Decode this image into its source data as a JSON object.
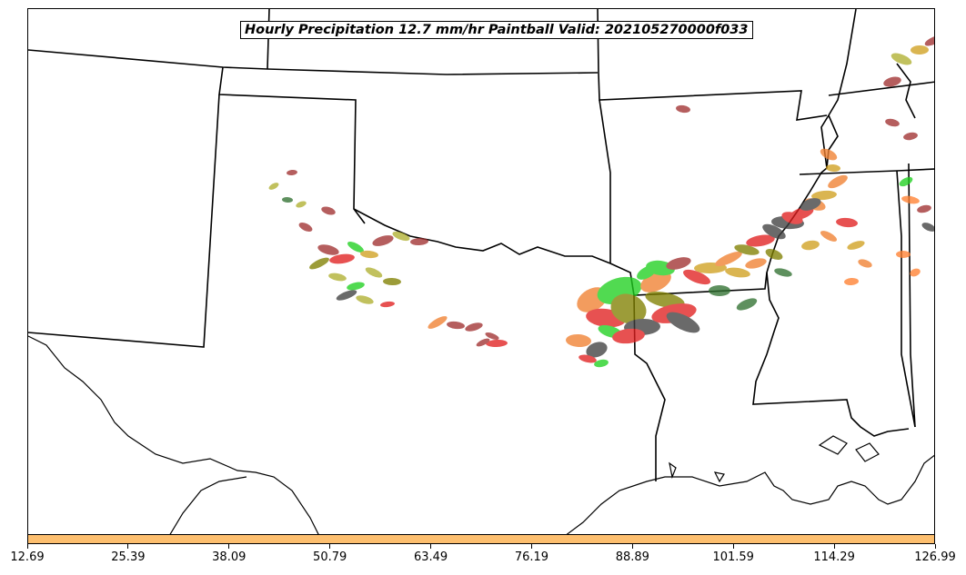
{
  "title": "Hourly Precipitation 12.7 mm/hr Paintball Valid: 202105270000f033",
  "colorbar": {
    "color": "#fdbf6f",
    "ticks": [
      "12.69",
      "25.39",
      "38.09",
      "50.79",
      "63.49",
      "76.19",
      "88.89",
      "101.59",
      "114.29",
      "126.99"
    ]
  },
  "member_colors": [
    "#f08030",
    "#e02020",
    "#20d020",
    "#808000",
    "#404040",
    "#a03030",
    "#d0a020",
    "#b0b030",
    "#307030",
    "#ff8030"
  ]
}
